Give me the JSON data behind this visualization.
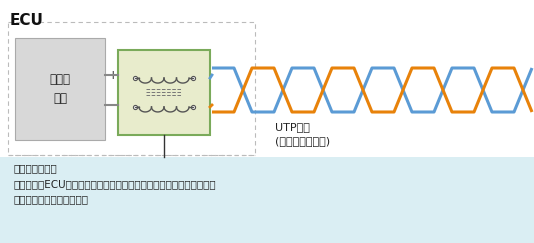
{
  "title": "ECU",
  "bg_color": "#ffffff",
  "phy_chip_label": "物理层\n芯片",
  "phy_chip_bg": "#d8d8d8",
  "phy_chip_border": "#aaaaaa",
  "filter_box_color": "#e8eccc",
  "filter_box_border": "#7aaa5a",
  "blue_color": "#5b9bd5",
  "orange_color": "#e8820a",
  "utp_label": "UTP电缆\n(非屏蔽、双绞线)",
  "info_box_color": "#daeef3",
  "info_line1": "《共模滤波器》",
  "info_line2": "在抑制来自ECU物理层芯片的辐射噪音的同时，还可保护芯片免受从电",
  "info_line3": "缆侵入的入射噪音的侵扰。",
  "dashed_border_color": "#bbbbbb",
  "gray_line_color": "#888888",
  "coil_color": "#555555",
  "plus_label": "+",
  "minus_label": "−"
}
